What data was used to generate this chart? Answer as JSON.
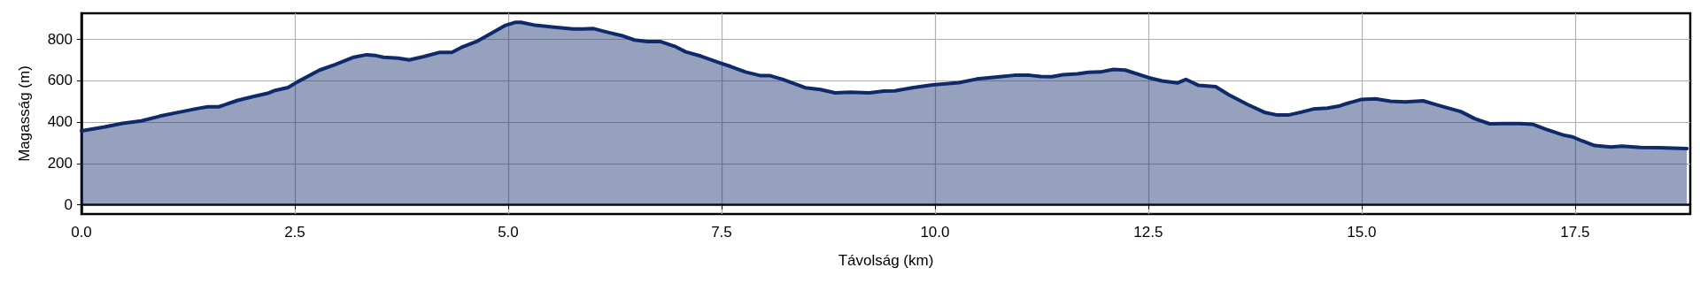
{
  "chart_data": {
    "type": "area",
    "xlabel": "Távolság (km)",
    "ylabel": "Magasság (m)",
    "xlim": [
      0,
      18.85
    ],
    "ylim": [
      -44,
      924
    ],
    "xticks": [
      {
        "value": 0,
        "label": "0.0"
      },
      2.5,
      {
        "value": 5,
        "label": "5.0"
      },
      7.5,
      {
        "value": 10,
        "label": "10.0"
      },
      12.5,
      {
        "value": 15,
        "label": "15.0"
      },
      17.5
    ],
    "yticks": [
      0,
      200,
      400,
      600,
      800
    ],
    "grid": true,
    "marker": "none",
    "line_style": "solid",
    "series": [
      {
        "color": "#0f2a6b",
        "x": [
          0,
          0.26,
          0.48,
          0.7,
          0.92,
          1.13,
          1.35,
          1.48,
          1.61,
          1.83,
          2.01,
          2.18,
          2.27,
          2.42,
          2.53,
          2.79,
          2.97,
          3.19,
          3.34,
          3.45,
          3.54,
          3.71,
          3.84,
          4.01,
          4.19,
          4.34,
          4.45,
          4.63,
          4.8,
          4.97,
          5.08,
          5.15,
          5.32,
          5.54,
          5.76,
          5.88,
          6.0,
          6.17,
          6.35,
          6.48,
          6.63,
          6.78,
          6.95,
          7.08,
          7.26,
          7.48,
          7.61,
          7.78,
          7.96,
          8.07,
          8.22,
          8.48,
          8.66,
          8.83,
          9.01,
          9.23,
          9.4,
          9.53,
          9.75,
          9.97,
          10.28,
          10.49,
          10.76,
          10.93,
          11.11,
          11.24,
          11.37,
          11.5,
          11.67,
          11.8,
          11.94,
          12.09,
          12.23,
          12.5,
          12.66,
          12.84,
          12.94,
          13.09,
          13.29,
          13.44,
          13.66,
          13.87,
          14.0,
          14.15,
          14.3,
          14.43,
          14.6,
          14.73,
          14.82,
          14.99,
          15.16,
          15.34,
          15.51,
          15.72,
          15.9,
          16.16,
          16.33,
          16.5,
          16.67,
          16.85,
          17.0,
          17.15,
          17.36,
          17.47,
          17.58,
          17.73,
          17.92,
          18.05,
          18.27,
          18.48,
          18.81
        ],
        "values": [
          357,
          375,
          393,
          405,
          428,
          446,
          464,
          473,
          473,
          504,
          522,
          538,
          552,
          566,
          593,
          650,
          676,
          712,
          724,
          720,
          712,
          708,
          699,
          715,
          735,
          735,
          759,
          788,
          827,
          866,
          880,
          880,
          866,
          857,
          848,
          848,
          850,
          832,
          814,
          795,
          788,
          788,
          765,
          738,
          717,
          685,
          667,
          641,
          623,
          623,
          605,
          565,
          556,
          540,
          543,
          540,
          549,
          550,
          566,
          579,
          589,
          607,
          618,
          625,
          625,
          619,
          618,
          628,
          632,
          639,
          641,
          653,
          650,
          614,
          598,
          588,
          605,
          576,
          570,
          532,
          485,
          445,
          434,
          434,
          448,
          462,
          467,
          476,
          488,
          508,
          511,
          500,
          497,
          502,
          480,
          450,
          415,
          391,
          392,
          392,
          389,
          366,
          337,
          328,
          309,
          286,
          279,
          283,
          277,
          276,
          272
        ]
      }
    ]
  }
}
